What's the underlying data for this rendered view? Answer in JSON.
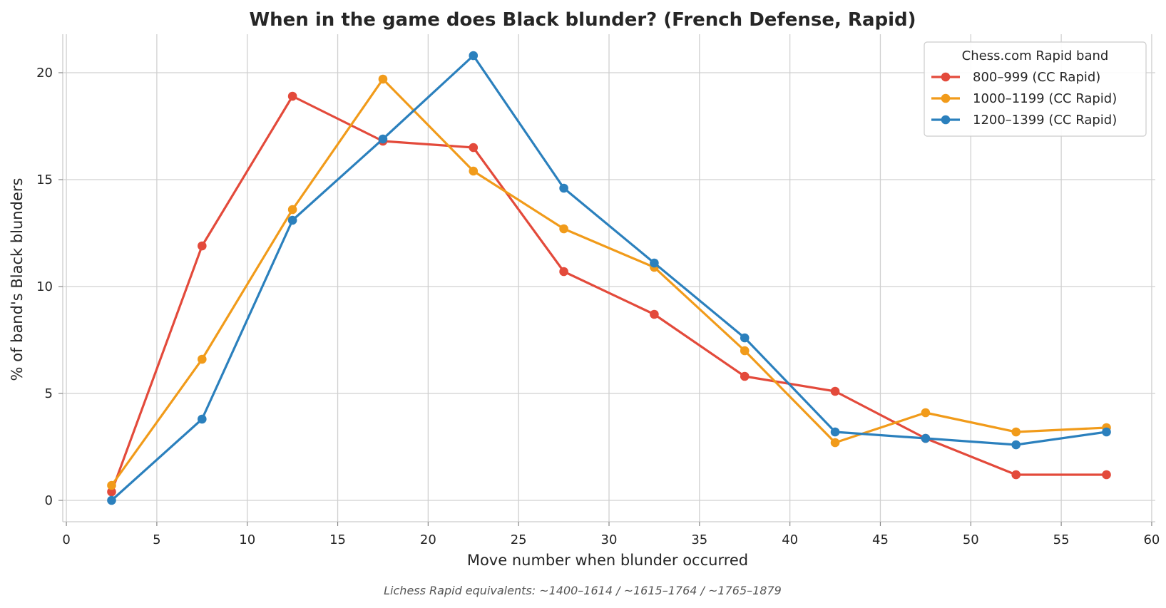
{
  "chart_data": {
    "type": "line",
    "title": "When in the game does Black blunder?  (French Defense, Rapid)",
    "xlabel": "Move number when blunder occurred",
    "ylabel": "% of band's Black blunders",
    "xlim": [
      -0.2,
      60.2
    ],
    "ylim": [
      -1,
      21.8
    ],
    "xticks": [
      0,
      5,
      10,
      15,
      20,
      25,
      30,
      35,
      40,
      45,
      50,
      55,
      60
    ],
    "yticks": [
      0,
      5,
      10,
      15,
      20
    ],
    "grid": true,
    "legend": {
      "title": "Chess.com Rapid band",
      "placement": "top-right"
    },
    "x": [
      2.5,
      7.5,
      12.5,
      17.5,
      22.5,
      27.5,
      32.5,
      37.5,
      42.5,
      47.5,
      52.5,
      57.5
    ],
    "series": [
      {
        "name": "800–999 (CC Rapid)",
        "color": "#e34a3b",
        "values": [
          0.4,
          11.9,
          18.9,
          16.8,
          16.5,
          10.7,
          8.7,
          5.8,
          5.1,
          2.9,
          1.2,
          1.2
        ]
      },
      {
        "name": "1000–1199 (CC Rapid)",
        "color": "#f19b1a",
        "values": [
          0.7,
          6.6,
          13.6,
          19.7,
          15.4,
          12.7,
          10.9,
          7.0,
          2.7,
          4.1,
          3.2,
          3.4
        ]
      },
      {
        "name": "1200–1399 (CC Rapid)",
        "color": "#2b80bd",
        "values": [
          0.0,
          3.8,
          13.1,
          16.9,
          20.8,
          14.6,
          11.1,
          7.6,
          3.2,
          2.9,
          2.6,
          3.2
        ]
      }
    ]
  },
  "footnote": "Lichess Rapid equivalents: ~1400–1614 / ~1615–1764 / ~1765–1879"
}
